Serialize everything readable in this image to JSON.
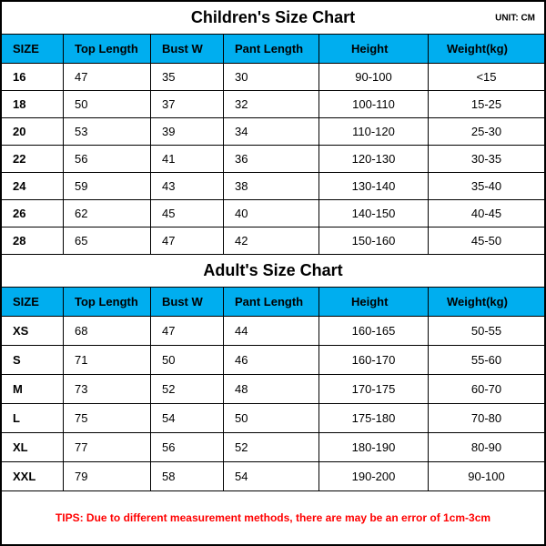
{
  "unit_label": "UNIT: CM",
  "columns": [
    "SIZE",
    "Top Length",
    "Bust W",
    "Pant Length",
    "Height",
    "Weight(kg)"
  ],
  "children": {
    "title": "Children's Size Chart",
    "rows": [
      {
        "size": "16",
        "top": "47",
        "bust": "35",
        "pant": "30",
        "height": "90-100",
        "weight": "<15"
      },
      {
        "size": "18",
        "top": "50",
        "bust": "37",
        "pant": "32",
        "height": "100-110",
        "weight": "15-25"
      },
      {
        "size": "20",
        "top": "53",
        "bust": "39",
        "pant": "34",
        "height": "110-120",
        "weight": "25-30"
      },
      {
        "size": "22",
        "top": "56",
        "bust": "41",
        "pant": "36",
        "height": "120-130",
        "weight": "30-35"
      },
      {
        "size": "24",
        "top": "59",
        "bust": "43",
        "pant": "38",
        "height": "130-140",
        "weight": "35-40"
      },
      {
        "size": "26",
        "top": "62",
        "bust": "45",
        "pant": "40",
        "height": "140-150",
        "weight": "40-45"
      },
      {
        "size": "28",
        "top": "65",
        "bust": "47",
        "pant": "42",
        "height": "150-160",
        "weight": "45-50"
      }
    ]
  },
  "adult": {
    "title": "Adult's Size Chart",
    "rows": [
      {
        "size": "XS",
        "top": "68",
        "bust": "47",
        "pant": "44",
        "height": "160-165",
        "weight": "50-55"
      },
      {
        "size": "S",
        "top": "71",
        "bust": "50",
        "pant": "46",
        "height": "160-170",
        "weight": "55-60"
      },
      {
        "size": "M",
        "top": "73",
        "bust": "52",
        "pant": "48",
        "height": "170-175",
        "weight": "60-70"
      },
      {
        "size": "L",
        "top": "75",
        "bust": "54",
        "pant": "50",
        "height": "175-180",
        "weight": "70-80"
      },
      {
        "size": "XL",
        "top": "77",
        "bust": "56",
        "pant": "52",
        "height": "180-190",
        "weight": "80-90"
      },
      {
        "size": "XXL",
        "top": "79",
        "bust": "58",
        "pant": "54",
        "height": "190-200",
        "weight": "90-100"
      }
    ]
  },
  "tips": "TIPS: Due to different measurement methods, there are may be an error of 1cm-3cm",
  "colors": {
    "header_bg": "#00aeef",
    "border": "#000000",
    "tips_color": "#ff0000",
    "background": "#ffffff"
  }
}
